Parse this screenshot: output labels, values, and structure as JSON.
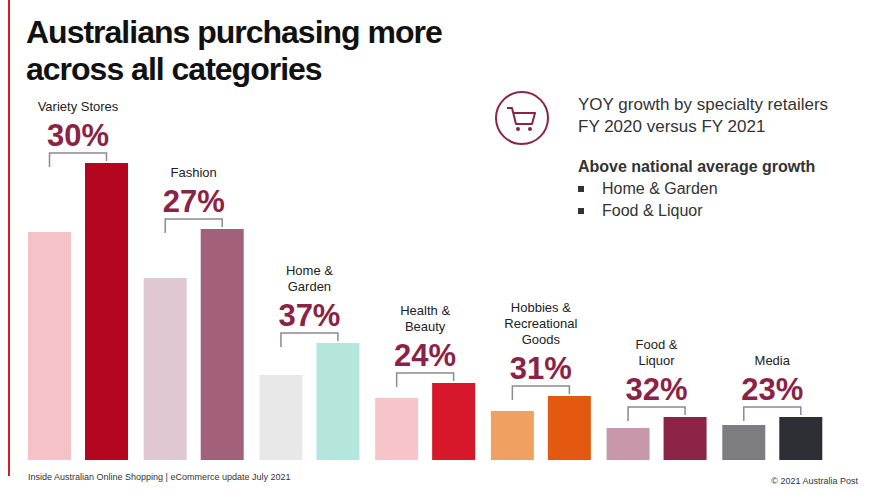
{
  "chart_data": {
    "type": "bar",
    "title": "Australians purchasing more\nacross all categories",
    "subtitle": "YOY growth by specialty retailers\nFY 2020 versus FY 2021",
    "highlight": {
      "heading": "Above national average growth",
      "items": [
        "Home & Garden",
        "Food & Liquor"
      ]
    },
    "categories": [
      "Variety Stores",
      "Fashion",
      "Home &\nGarden",
      "Health &\nBeauty",
      "Hobbies &\nRecreational\nGoods",
      "Food &\nLiquor",
      "Media"
    ],
    "series": [
      {
        "values": [
          228,
          182,
          85,
          62,
          49,
          32,
          35
        ],
        "colors": [
          "#f4c2c7",
          "#dfc8d1",
          "#e8e8e8",
          "#f6c4c9",
          "#f0a061",
          "#c897aa",
          "#7d7d80"
        ]
      },
      {
        "values": [
          297,
          231,
          117,
          77,
          64,
          43,
          43
        ],
        "colors": [
          "#b5061f",
          "#a3607b",
          "#b5e6dc",
          "#d7182a",
          "#e35910",
          "#8b2346",
          "#2e2e35"
        ]
      }
    ],
    "growth_labels": [
      "30%",
      "27%",
      "37%",
      "24%",
      "31%",
      "32%",
      "23%"
    ],
    "ylim": [
      0,
      300
    ],
    "tick_labels": false,
    "grid": false,
    "footer": {
      "left": "Inside Australian Online Shopping | eCommerce update July 2021",
      "right": "© 2021 Australia Post"
    }
  }
}
